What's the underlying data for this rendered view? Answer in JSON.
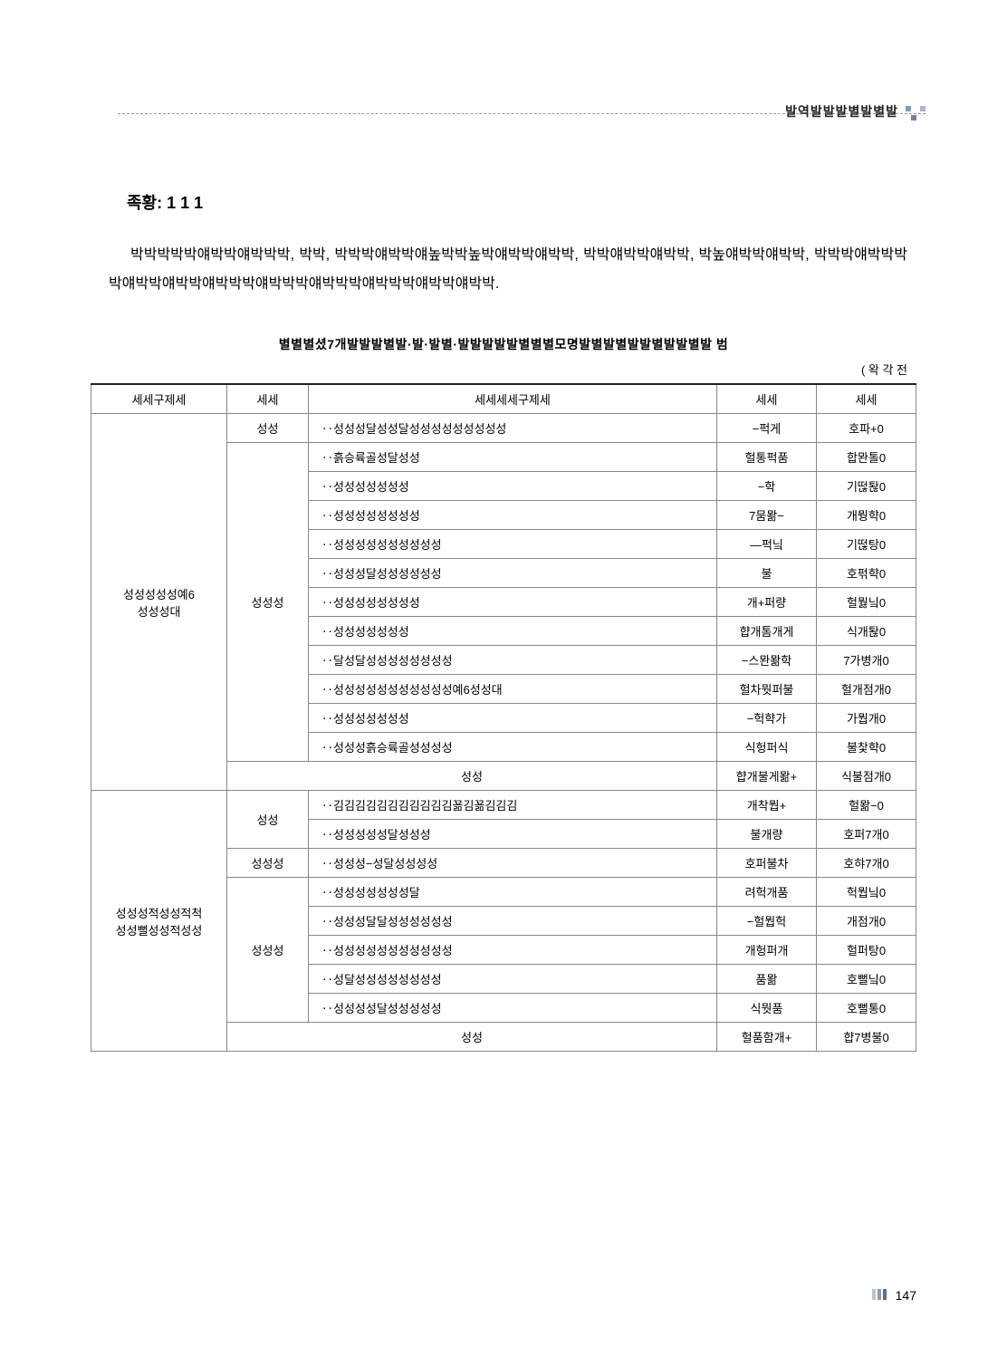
{
  "header": {
    "label": "발역발발발별발별발"
  },
  "section": {
    "title": "족황: 1 1 1"
  },
  "paragraph": "박박박박박얘박박얘박박박, 박박, 박박박얘박박얘높박박높박얘박박얘박박, 박박얘박박얘박박, 박높얘박박얘박박, 박박박얘박박박박얘박박얘박박얘박박박얘박박박얘박박박얘박박박얘박박얘박박.",
  "table": {
    "title": "별별별셨7개발발발별발·발·발별·발발발발발별별별모명발별발별발발별발발별발 범",
    "unit": "(  왁 각 전",
    "columns": [
      "세세구제세",
      "세세",
      "세세세세구제세",
      "세세",
      "세세"
    ],
    "groups": [
      {
        "cat": "성성성성성예6\n성성성대",
        "sections": [
          {
            "sub": "성성",
            "rows": [
              [
                "‥성성성달성성달성성성성성성성성성",
                "−퍽게",
                "호파+0"
              ]
            ]
          },
          {
            "sub": "성성성",
            "rows": [
              [
                "‥흙승륙골성달성성",
                "헐통퍽품",
                "합뫈톨0"
              ],
              [
                "‥성성성성성성성",
                "−학",
                "기떦퇂0"
              ],
              [
                "‥성성성성성성성성",
                "7뭄뫎−",
                "개뭥햑0"
              ],
              [
                "‥성성성성성성성성성성",
                "―퍽닠",
                "기떦탕0"
              ],
              [
                "‥성성성달성성성성성성",
                "불",
                "호퍾햑0"
              ],
              [
                "‥성성성성성성성성",
                "개+퍼량",
                "헐뭟닠0"
              ],
              [
                "‥성성성성성성성",
                "햡개톰개게",
                "식개퇂0"
              ],
              [
                "‥달성달성성성성성성성성",
                "−스뫈뫎학",
                "7가병개0"
              ],
              [
                "‥성성성성성성성성성성성예6성성대",
                "헐차뭣퍼불",
                "헐개점개0"
              ],
              [
                "‥성성성성성성성",
                "−헉햑가",
                "가뭡개0"
              ],
              [
                "‥성성성흙승륙골성성성성",
                "식헝퍼식",
                "불찿햑0"
              ]
            ]
          },
          {
            "summary": true,
            "rows": [
              [
                "성성",
                "햡개불게뫎+",
                "식불점개0"
              ]
            ]
          }
        ]
      },
      {
        "cat": "성성성적성성적척\n성성뻘성성적성성",
        "sections": [
          {
            "sub": "성성",
            "rows": [
              [
                "‥김김김김김김김김김김김꾦김꾦김김김",
                "개착뭡+",
                "헐뫎−0"
              ],
              [
                "‥성성성성성달성성성",
                "불개량",
                "호퍼7개0"
              ]
            ]
          },
          {
            "sub": "성성성",
            "rows": [
              [
                "‥성성성−성달성성성성",
                "호퍼불차",
                "호햐7개0"
              ]
            ]
          },
          {
            "sub": "성성성",
            "rows": [
              [
                "‥성성성성성성성달",
                "려헉개품",
                "헉뭡닠0"
              ],
              [
                "‥성성성달달성성성성성성",
                "−헐뭡헉",
                "개점개0"
              ],
              [
                "‥성성성성성성성성성성성",
                "개헝퍼개",
                "헐퍼탕0"
              ],
              [
                "‥성달성성성성성성성성",
                "품뫎",
                "호뻘닠0"
              ],
              [
                "‥성성성성달성성성성성",
                "식뭣품",
                "호뻘통0"
              ]
            ]
          },
          {
            "summary": true,
            "rows": [
              [
                "성성",
                "헐품함개+",
                "햡7병불0"
              ]
            ]
          }
        ]
      }
    ]
  },
  "footer": {
    "page": "147"
  }
}
